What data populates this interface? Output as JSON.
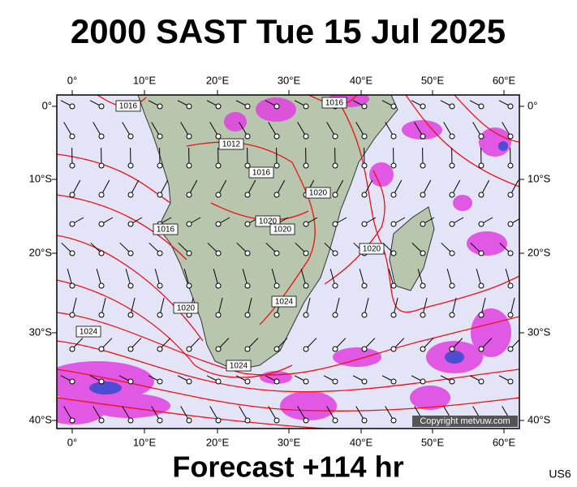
{
  "header": {
    "title": "2000 SAST Tue 15 Jul 2025"
  },
  "map": {
    "lon_labels": [
      "0°",
      "10°E",
      "20°E",
      "30°E",
      "40°E",
      "50°E",
      "60°E"
    ],
    "lat_labels": [
      "0°",
      "10°S",
      "20°S",
      "30°S",
      "40°S"
    ],
    "isobar_labels": [
      "1016",
      "1016",
      "1012",
      "1016",
      "1020",
      "1016",
      "1020",
      "1020",
      "1020",
      "1024",
      "1020",
      "1024",
      "1024"
    ],
    "copyright": "Copyright metvuw.com"
  },
  "footer": {
    "forecast": "Forecast +114 hr",
    "code": "US6"
  }
}
